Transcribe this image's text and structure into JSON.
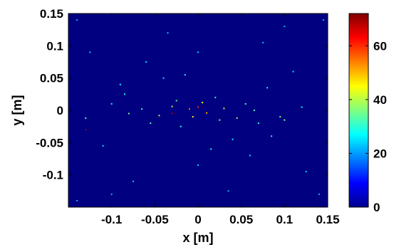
{
  "chart_data": {
    "type": "heatmap",
    "title": "",
    "xlabel": "x [m]",
    "ylabel": "y [m]",
    "xlim": [
      -0.15,
      0.15
    ],
    "ylim": [
      -0.15,
      0.15
    ],
    "xticks": [
      -0.1,
      -0.05,
      0,
      0.05,
      0.1,
      0.15
    ],
    "xtick_labels": [
      "-0.1",
      "-0.05",
      "0",
      "0.05",
      "0.1",
      "0.15"
    ],
    "yticks": [
      0.15,
      0.1,
      0.05,
      0,
      -0.05,
      -0.1
    ],
    "ytick_labels": [
      "0.15",
      "0.1",
      "0.05",
      "0",
      "-0.05",
      "-0.1"
    ],
    "colorbar": {
      "colormap": "jet",
      "range": [
        0,
        72
      ],
      "ticks": [
        0,
        20,
        40,
        60
      ],
      "tick_labels": [
        "0",
        "20",
        "40",
        "60"
      ]
    },
    "background_value": 0,
    "grid": false,
    "points": [
      {
        "x": 0.0,
        "y": 0.005,
        "v": 60
      },
      {
        "x": -0.01,
        "y": 0.002,
        "v": 55
      },
      {
        "x": 0.01,
        "y": -0.004,
        "v": 50
      },
      {
        "x": 0.005,
        "y": 0.012,
        "v": 45
      },
      {
        "x": -0.006,
        "y": -0.01,
        "v": 45
      },
      {
        "x": 0.03,
        "y": 0.003,
        "v": 40
      },
      {
        "x": -0.03,
        "y": 0.006,
        "v": 40
      },
      {
        "x": -0.045,
        "y": -0.008,
        "v": 38
      },
      {
        "x": 0.045,
        "y": -0.012,
        "v": 38
      },
      {
        "x": 0.095,
        "y": -0.01,
        "v": 36
      },
      {
        "x": 0.1,
        "y": -0.015,
        "v": 35
      },
      {
        "x": -0.08,
        "y": -0.005,
        "v": 35
      },
      {
        "x": -0.13,
        "y": -0.012,
        "v": 33
      },
      {
        "x": -0.065,
        "y": 0.002,
        "v": 32
      },
      {
        "x": 0.055,
        "y": 0.01,
        "v": 32
      },
      {
        "x": -0.02,
        "y": -0.025,
        "v": 30
      },
      {
        "x": 0.02,
        "y": 0.02,
        "v": 30
      },
      {
        "x": 0.07,
        "y": -0.02,
        "v": 30
      },
      {
        "x": -0.1,
        "y": 0.01,
        "v": 28
      },
      {
        "x": 0.12,
        "y": 0.005,
        "v": 28
      },
      {
        "x": -0.09,
        "y": 0.04,
        "v": 27
      },
      {
        "x": 0.08,
        "y": 0.035,
        "v": 27
      },
      {
        "x": -0.04,
        "y": 0.05,
        "v": 26
      },
      {
        "x": 0.04,
        "y": -0.045,
        "v": 26
      },
      {
        "x": -0.11,
        "y": -0.055,
        "v": 25
      },
      {
        "x": 0.11,
        "y": 0.06,
        "v": 25
      },
      {
        "x": -0.06,
        "y": 0.075,
        "v": 25
      },
      {
        "x": 0.06,
        "y": -0.07,
        "v": 25
      },
      {
        "x": 0.0,
        "y": 0.09,
        "v": 24
      },
      {
        "x": 0.0,
        "y": -0.085,
        "v": 24
      },
      {
        "x": -0.125,
        "y": 0.09,
        "v": 24
      },
      {
        "x": 0.125,
        "y": -0.095,
        "v": 24
      },
      {
        "x": -0.075,
        "y": -0.11,
        "v": 23
      },
      {
        "x": 0.075,
        "y": 0.105,
        "v": 23
      },
      {
        "x": -0.035,
        "y": 0.12,
        "v": 23
      },
      {
        "x": 0.035,
        "y": -0.125,
        "v": 23
      },
      {
        "x": 0.145,
        "y": 0.14,
        "v": 22
      },
      {
        "x": -0.14,
        "y": 0.14,
        "v": 22
      },
      {
        "x": 0.14,
        "y": -0.13,
        "v": 22
      },
      {
        "x": -0.14,
        "y": -0.14,
        "v": 22
      },
      {
        "x": 0.1,
        "y": 0.13,
        "v": 22
      },
      {
        "x": -0.1,
        "y": -0.13,
        "v": 22
      },
      {
        "x": 0.015,
        "y": -0.06,
        "v": 28
      },
      {
        "x": -0.015,
        "y": 0.055,
        "v": 28
      },
      {
        "x": 0.085,
        "y": -0.04,
        "v": 28
      },
      {
        "x": -0.085,
        "y": 0.025,
        "v": 28
      },
      {
        "x": 0.025,
        "y": -0.015,
        "v": 34
      },
      {
        "x": -0.025,
        "y": 0.015,
        "v": 34
      },
      {
        "x": 0.065,
        "y": 0.0,
        "v": 33
      },
      {
        "x": -0.055,
        "y": -0.02,
        "v": 33
      },
      {
        "x": -0.13,
        "y": -0.03,
        "v": 70
      },
      {
        "x": -0.03,
        "y": -0.005,
        "v": 69
      }
    ]
  }
}
